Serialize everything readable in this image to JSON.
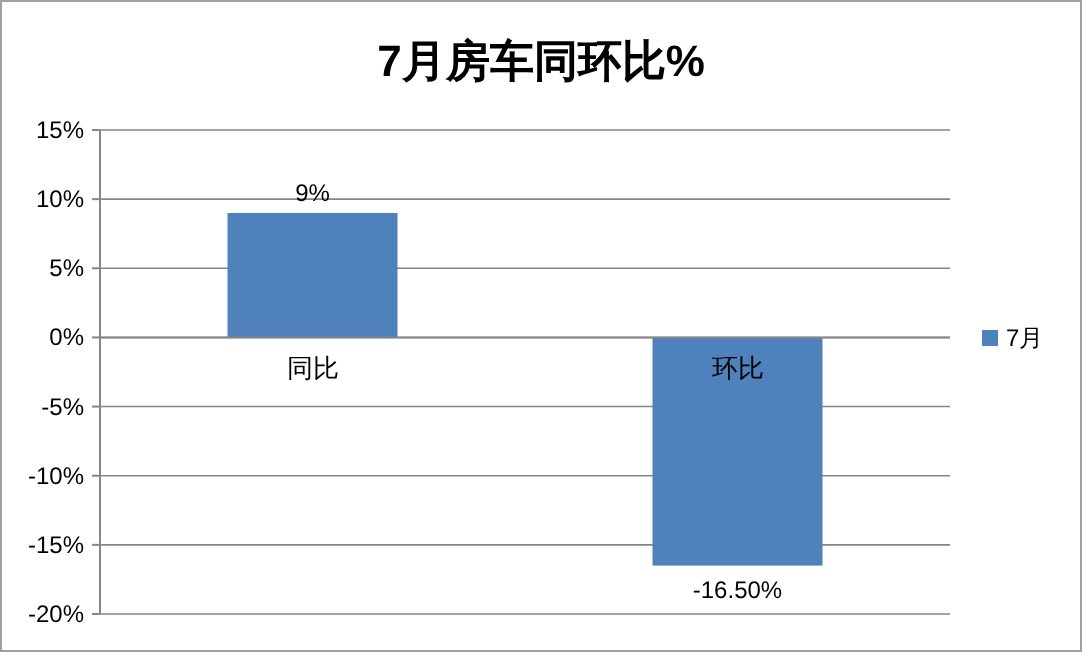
{
  "chart_data": {
    "type": "bar",
    "title": "7月房车同环比%",
    "categories": [
      "同比",
      "环比"
    ],
    "series": [
      {
        "name": "7月",
        "color": "#4f81bd",
        "values": [
          9,
          -16.5
        ],
        "value_labels": [
          "9%",
          "-16.50%"
        ]
      }
    ],
    "ylim": [
      -20,
      15
    ],
    "yticks": [
      {
        "value": -20,
        "label": "-20%"
      },
      {
        "value": -15,
        "label": "-15%"
      },
      {
        "value": -10,
        "label": "-10%"
      },
      {
        "value": -5,
        "label": "-5%"
      },
      {
        "value": 0,
        "label": "0%"
      },
      {
        "value": 5,
        "label": "5%"
      },
      {
        "value": 10,
        "label": "10%"
      },
      {
        "value": 15,
        "label": "15%"
      }
    ],
    "grid": "y",
    "legend": "right"
  }
}
